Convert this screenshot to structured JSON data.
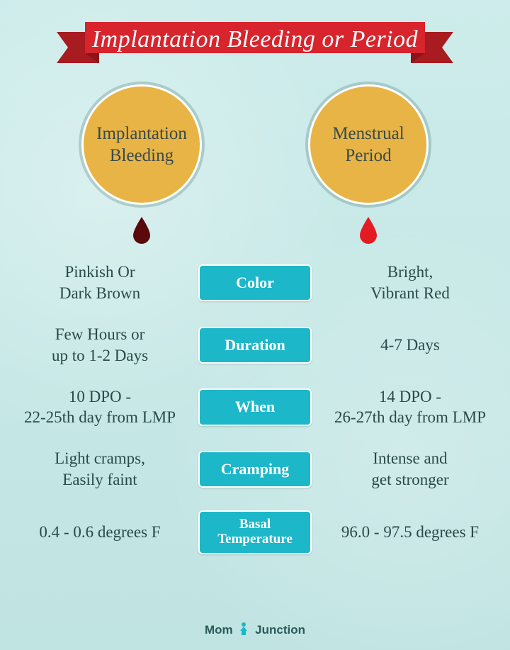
{
  "title": "Implantation Bleeding or Period",
  "banner": {
    "fill": "#d8242c",
    "shadow": "#a81b21"
  },
  "columns": {
    "left": {
      "heading": "Implantation\nBleeding",
      "drop_color": "#5a0a0c"
    },
    "right": {
      "heading": "Menstrual\nPeriod",
      "drop_color": "#e31b23"
    }
  },
  "circle": {
    "fill": "#e7b445",
    "ring": "#ffffff",
    "title_fontsize": 25
  },
  "chip": {
    "fill": "#1cb7c8",
    "text": "#ffffff"
  },
  "background_color": "#c6e8e6",
  "text_color": "#2a4a4a",
  "rows": [
    {
      "label": "Color",
      "left": "Pinkish Or\nDark Brown",
      "right": "Bright,\nVibrant Red"
    },
    {
      "label": "Duration",
      "left": "Few Hours or\nup to 1-2 Days",
      "right": "4-7 Days"
    },
    {
      "label": "When",
      "left": "10 DPO -\n22-25th day from LMP",
      "right": "14 DPO -\n26-27th day from LMP"
    },
    {
      "label": "Cramping",
      "left": "Light cramps,\nEasily faint",
      "right": "Intense and\nget stronger"
    },
    {
      "label": "Basal\nTemperature",
      "left": "0.4 - 0.6 degrees F",
      "right": "96.0 - 97.5 degrees F",
      "small": true
    }
  ],
  "footer": {
    "left": "Mom",
    "right": "Junction",
    "icon_color": "#1cb7c8"
  }
}
